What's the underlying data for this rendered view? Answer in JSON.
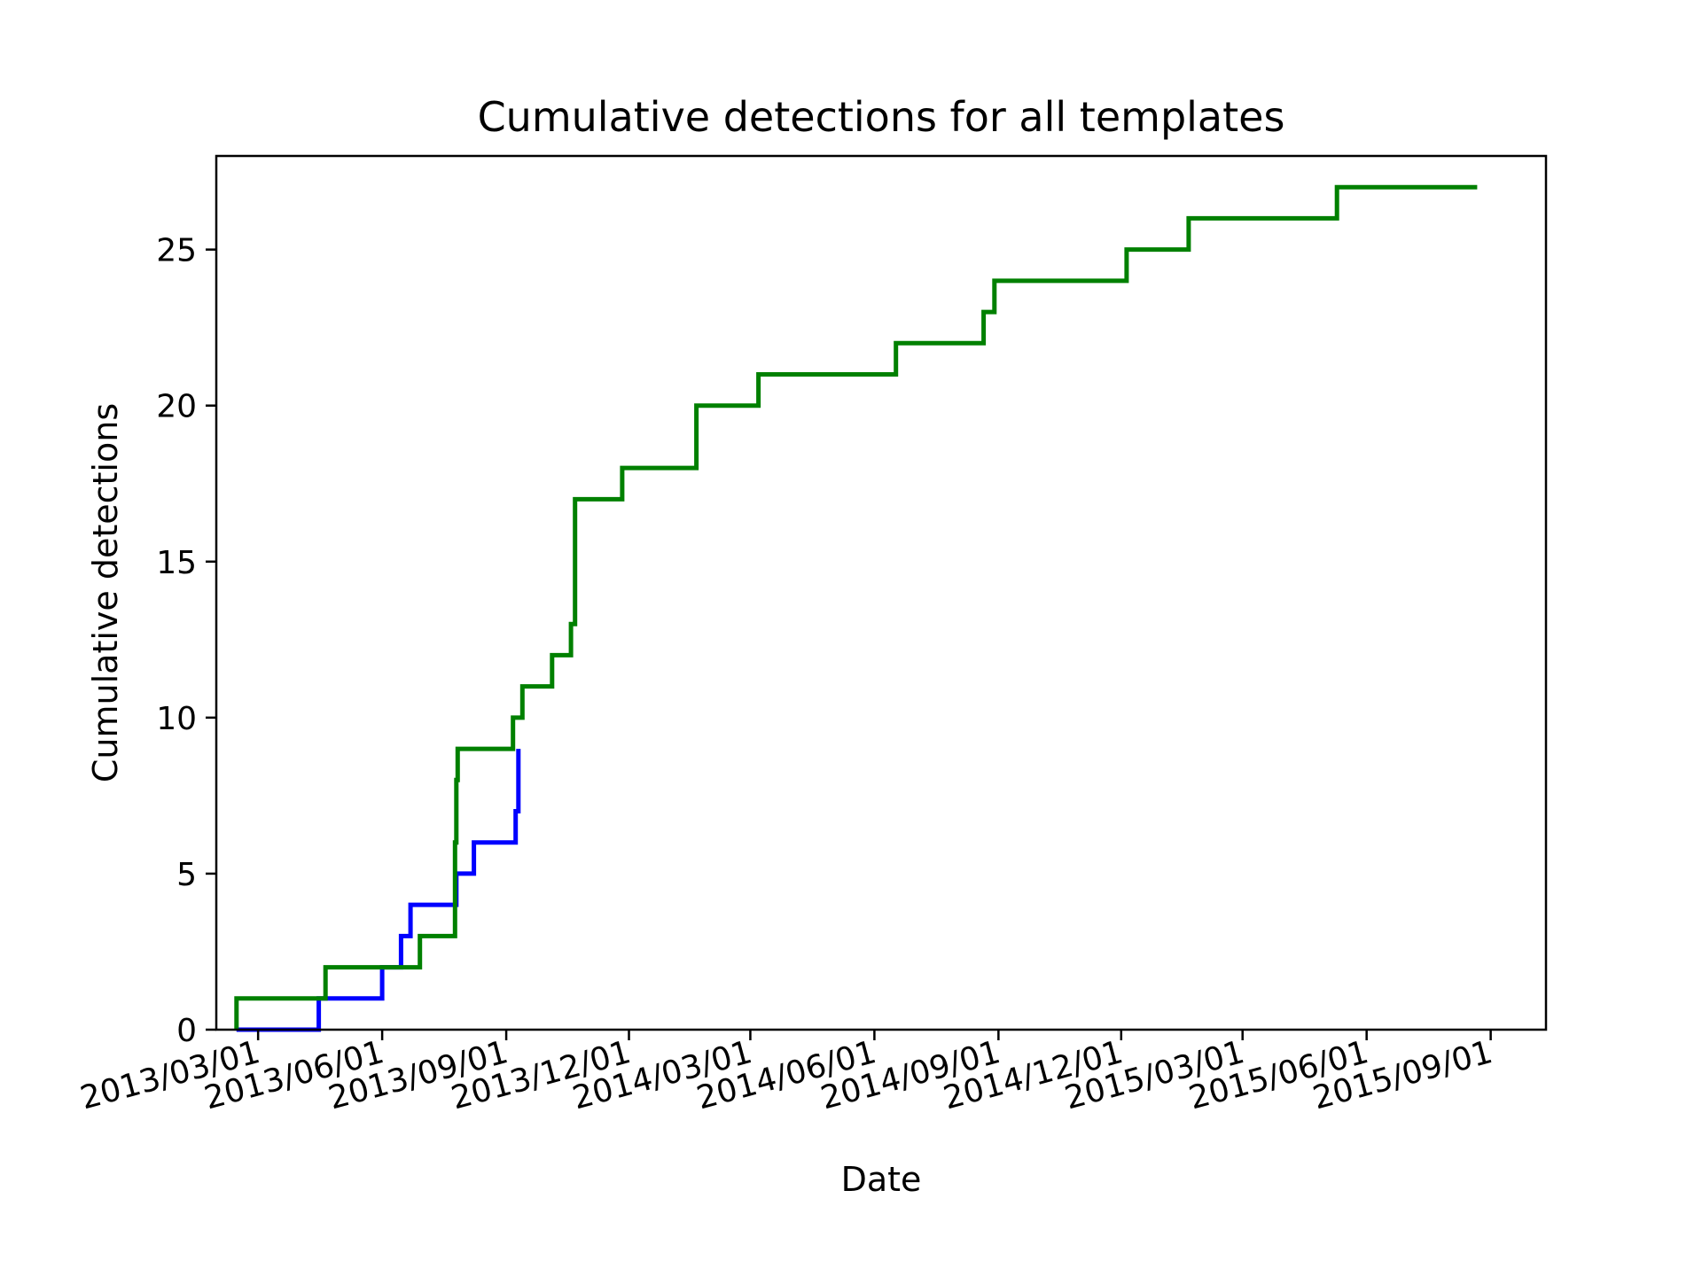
{
  "chart_data": {
    "type": "line",
    "step": true,
    "title": "Cumulative detections for all templates",
    "xlabel": "Date",
    "ylabel": "Cumulative detections",
    "xlim": [
      "2013-01-29",
      "2015-10-12"
    ],
    "ylim": [
      0,
      28
    ],
    "x_ticks": [
      "2013/03/01",
      "2013/06/01",
      "2013/09/01",
      "2013/12/01",
      "2014/03/01",
      "2014/06/01",
      "2014/09/01",
      "2014/12/01",
      "2015/03/01",
      "2015/06/01",
      "2015/09/01"
    ],
    "y_ticks": [
      0,
      5,
      10,
      15,
      20,
      25
    ],
    "grid": false,
    "legend": "none",
    "series": [
      {
        "color": "#0000ff",
        "points": [
          [
            "2013-02-13",
            0
          ],
          [
            "2013-04-15",
            1
          ],
          [
            "2013-06-01",
            2
          ],
          [
            "2013-06-15",
            3
          ],
          [
            "2013-06-22",
            4
          ],
          [
            "2013-07-26",
            5
          ],
          [
            "2013-08-08",
            6
          ],
          [
            "2013-09-08",
            7
          ],
          [
            "2013-09-10",
            9
          ]
        ]
      },
      {
        "color": "#008000",
        "points": [
          [
            "2013-02-13",
            1
          ],
          [
            "2013-04-20",
            2
          ],
          [
            "2013-06-29",
            3
          ],
          [
            "2013-07-25",
            6
          ],
          [
            "2013-07-26",
            8
          ],
          [
            "2013-07-27",
            9
          ],
          [
            "2013-09-06",
            10
          ],
          [
            "2013-09-13",
            11
          ],
          [
            "2013-10-05",
            12
          ],
          [
            "2013-10-19",
            13
          ],
          [
            "2013-10-22",
            17
          ],
          [
            "2013-11-26",
            18
          ],
          [
            "2014-01-20",
            20
          ],
          [
            "2014-03-07",
            21
          ],
          [
            "2014-06-17",
            22
          ],
          [
            "2014-08-21",
            23
          ],
          [
            "2014-08-29",
            24
          ],
          [
            "2014-12-05",
            25
          ],
          [
            "2015-01-20",
            26
          ],
          [
            "2015-05-10",
            27
          ],
          [
            "2015-08-22",
            27
          ]
        ]
      }
    ]
  }
}
